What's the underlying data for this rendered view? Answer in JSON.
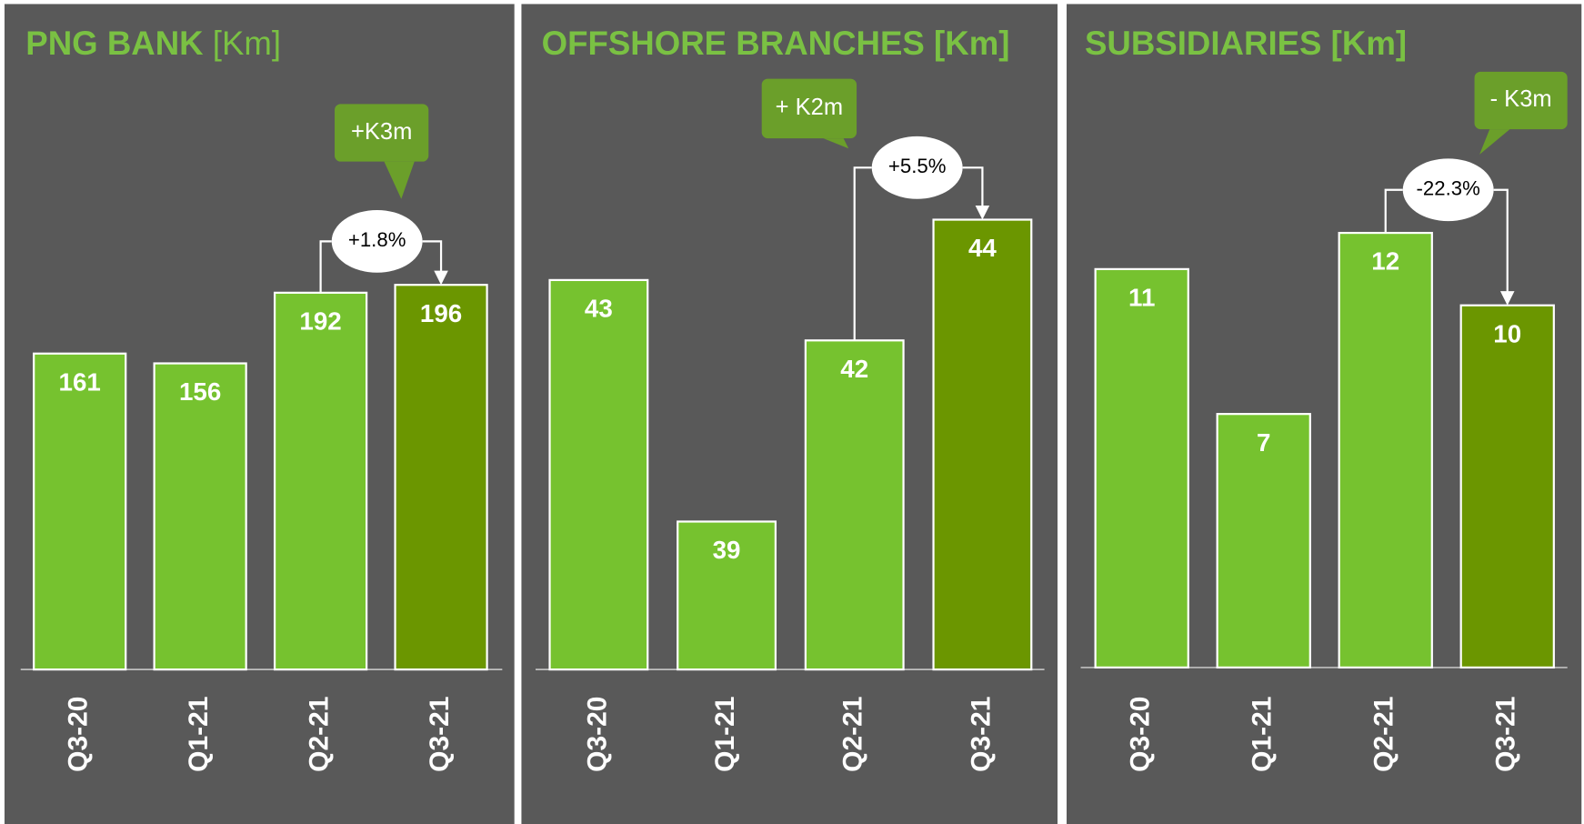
{
  "chart_data": [
    {
      "type": "bar",
      "title": "PNG BANK",
      "unit": "[Km]",
      "categories": [
        "Q3-20",
        "Q1-21",
        "Q2-21",
        "Q3-21"
      ],
      "values": [
        161,
        156,
        192,
        196
      ],
      "colors": [
        "#76c22f",
        "#76c22f",
        "#76c22f",
        "#6b9600"
      ],
      "ylim": [
        0,
        300
      ],
      "callout": "+K3m",
      "change": "+1.8%"
    },
    {
      "type": "bar",
      "title": "OFFSHORE BRANCHES",
      "unit": "[Km]",
      "categories": [
        "Q3-20",
        "Q1-21",
        "Q2-21",
        "Q3-21"
      ],
      "values": [
        43,
        39,
        42,
        44
      ],
      "colors": [
        "#76c22f",
        "#76c22f",
        "#76c22f",
        "#6b9600"
      ],
      "ylim": [
        36.55,
        46.3
      ],
      "callout": "+ K2m",
      "change": "+5.5%"
    },
    {
      "type": "bar",
      "title": "SUBSIDIARIES",
      "unit": "[Km]",
      "categories": [
        "Q3-20",
        "Q1-21",
        "Q2-21",
        "Q3-21"
      ],
      "values": [
        11,
        7,
        12,
        10
      ],
      "colors": [
        "#76c22f",
        "#76c22f",
        "#76c22f",
        "#6b9600"
      ],
      "ylim": [
        0,
        16.2
      ],
      "callout": "- K3m",
      "change": "-22.3%"
    }
  ]
}
